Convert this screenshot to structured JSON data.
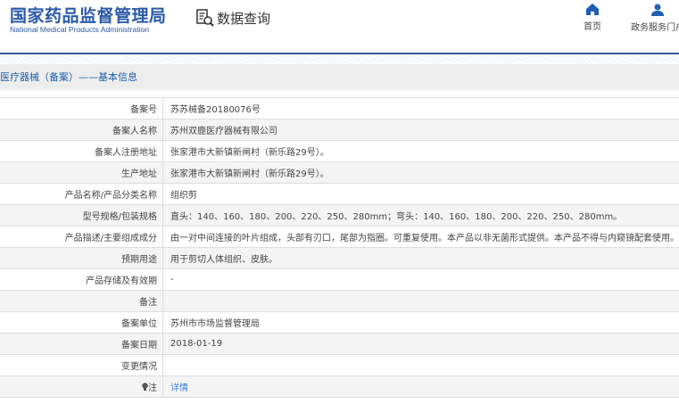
{
  "header": {
    "logo_cn": "国家药品监督管理局",
    "logo_en": "National Medical Products Administration",
    "section_name": "数据查询",
    "nav": [
      {
        "label": "首页",
        "icon": "home-icon"
      },
      {
        "label": "政务服务门户",
        "icon": "user-icon"
      }
    ]
  },
  "section_title": "医疗器械（备案）——基本信息",
  "accent": "#2c5aa8",
  "rows": [
    {
      "label": "备案号",
      "value": "苏苏械备20180076号"
    },
    {
      "label": "备案人名称",
      "value": "苏州双鹿医疗器械有限公司"
    },
    {
      "label": "备案人注册地址",
      "value": "张家港市大新镇新闸村（新乐路29号）。"
    },
    {
      "label": "生产地址",
      "value": "张家港市大新镇新闸村（新乐路29号）。"
    },
    {
      "label": "产品名称/产品分类名称",
      "value": "组织剪"
    },
    {
      "label": "型号规格/包装规格",
      "value": "直头：140、160、180、200、220、250、280mm；弯头：140、160、180、200、220、250、280mm。"
    },
    {
      "label": "产品描述/主要组成成分",
      "value": "由一对中间连接的叶片组成，头部有刃口，尾部为指圈。可重复使用。本产品以非无菌形式提供。本产品不得与内窥镜配套使用。"
    },
    {
      "label": "预期用途",
      "value": "用于剪切人体组织、皮肤。"
    },
    {
      "label": "产品存储及有效期",
      "value": "-"
    },
    {
      "label": "备注",
      "value": ""
    },
    {
      "label": "备案单位",
      "value": "苏州市市场监督管理局"
    },
    {
      "label": "备案日期",
      "value": "2018-01-19"
    },
    {
      "label": "变更情况",
      "value": ""
    },
    {
      "label": "注",
      "value": "详情"
    }
  ]
}
